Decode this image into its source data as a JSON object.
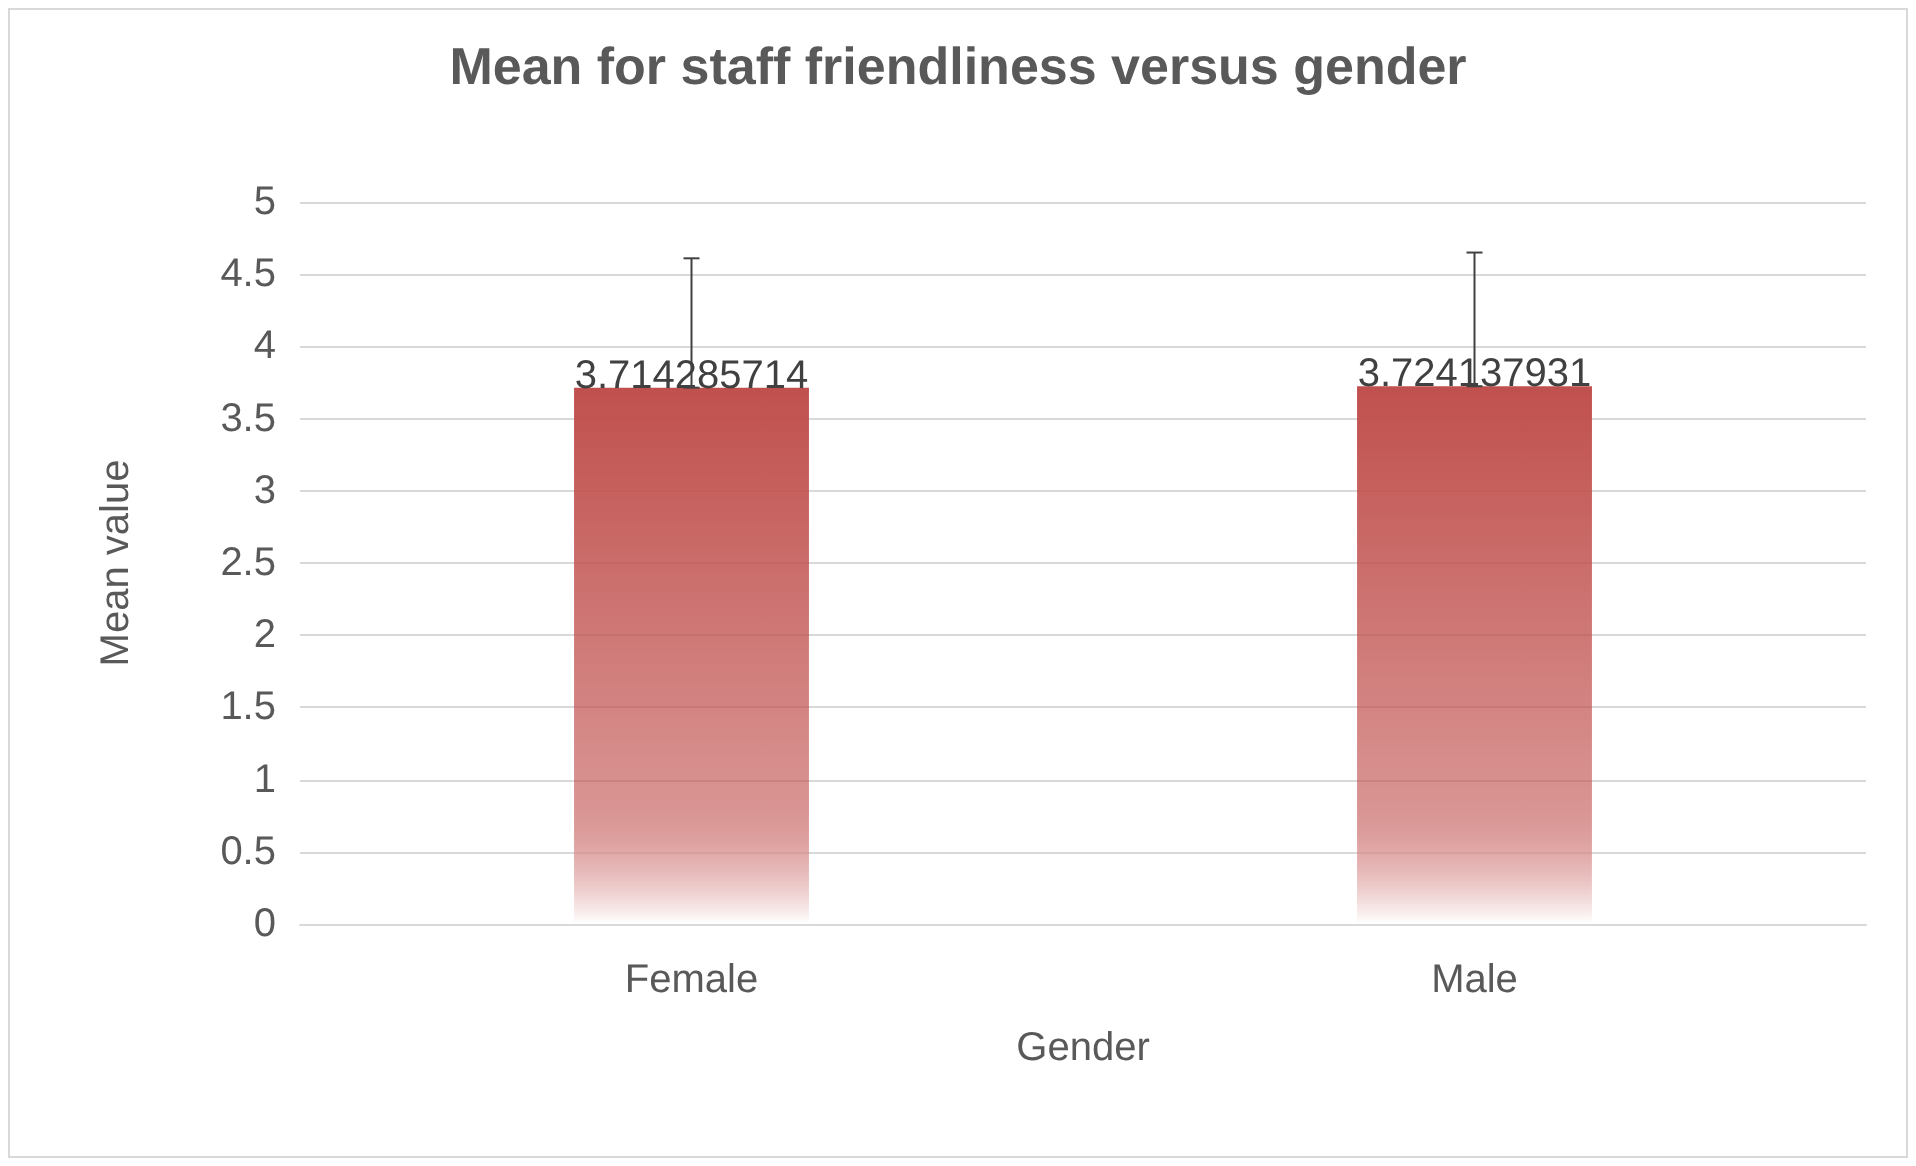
{
  "chart_data": {
    "type": "bar",
    "title": "Mean for staff friendliness versus gender",
    "xlabel": "Gender",
    "ylabel": "Mean value",
    "categories": [
      "Female",
      "Male"
    ],
    "values": [
      3.714285714,
      3.724137931
    ],
    "errors": [
      [
        3.714285714,
        4.61
      ],
      [
        3.724137931,
        4.65
      ]
    ],
    "color": "#c0504d",
    "ylim": [
      0,
      5
    ],
    "yticks": [
      0,
      0.5,
      1,
      1.5,
      2,
      2.5,
      3,
      3.5,
      4,
      4.5,
      5
    ],
    "grid": "y",
    "data_labels": true
  }
}
